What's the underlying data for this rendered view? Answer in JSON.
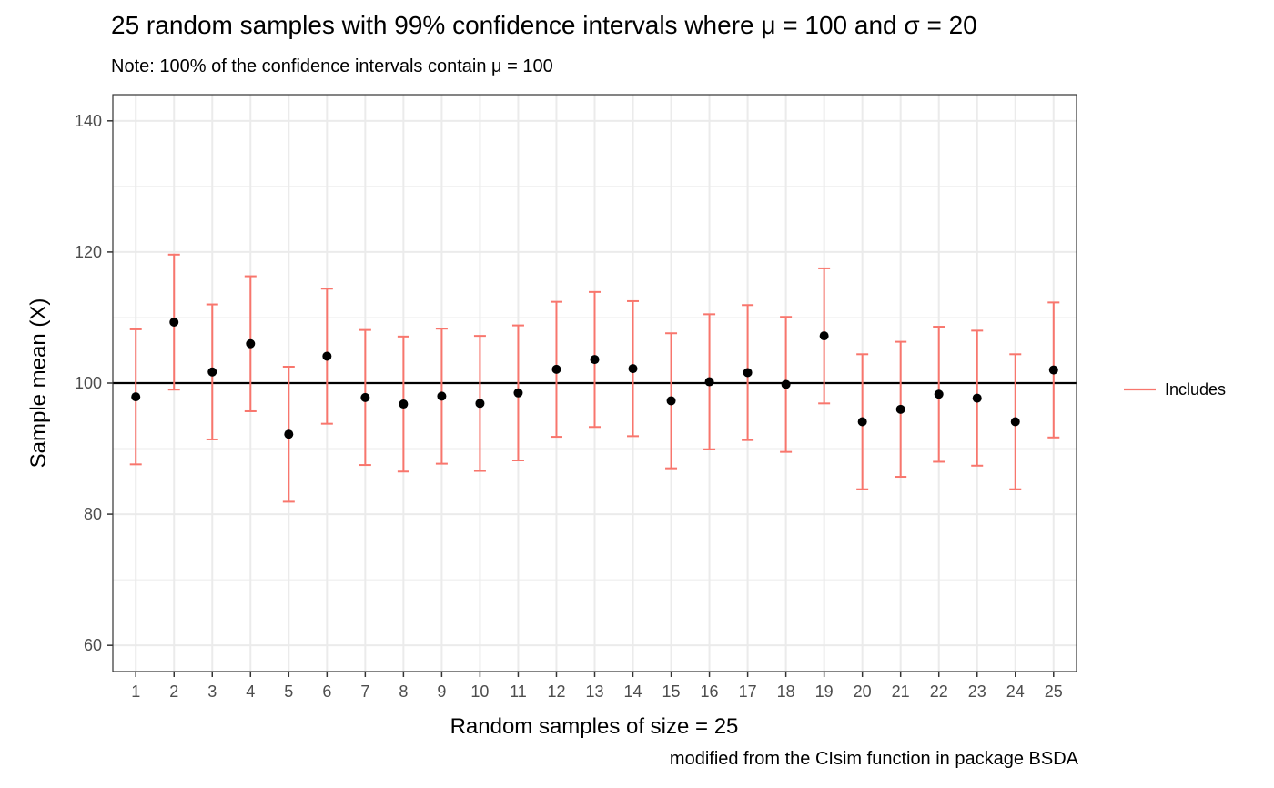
{
  "chart_data": {
    "type": "scatter",
    "title": "25 random samples with 99% confidence intervals where μ = 100 and σ = 20",
    "subtitle": "Note: 100% of the confidence intervals contain μ = 100",
    "caption": "modified from the CIsim function in package BSDA",
    "xlabel": "Random samples of size = 25",
    "ylabel": "Sample mean (X)",
    "ylabel_overline_symbol": "X",
    "x": [
      1,
      2,
      3,
      4,
      5,
      6,
      7,
      8,
      9,
      10,
      11,
      12,
      13,
      14,
      15,
      16,
      17,
      18,
      19,
      20,
      21,
      22,
      23,
      24,
      25
    ],
    "x_tick_labels": [
      "1",
      "2",
      "3",
      "4",
      "5",
      "6",
      "7",
      "8",
      "9",
      "10",
      "11",
      "12",
      "13",
      "14",
      "15",
      "16",
      "17",
      "18",
      "19",
      "20",
      "21",
      "22",
      "23",
      "24",
      "25"
    ],
    "y_ticks": [
      60,
      80,
      100,
      120,
      140
    ],
    "y_tick_labels": [
      "60",
      "80",
      "100",
      "120",
      "140"
    ],
    "ylim": [
      56,
      144
    ],
    "xlim": [
      0.4,
      25.6
    ],
    "reference_line": 100,
    "grid": true,
    "series": [
      {
        "name": "Includes",
        "color": "#F8766D",
        "means": [
          97.9,
          109.3,
          101.7,
          106.0,
          92.2,
          104.1,
          97.8,
          96.8,
          98.0,
          96.9,
          98.5,
          102.1,
          103.6,
          102.2,
          97.3,
          100.2,
          101.6,
          99.8,
          107.2,
          94.1,
          96.0,
          98.3,
          97.7,
          94.1,
          102.0
        ],
        "lower": [
          87.6,
          99.0,
          91.4,
          95.7,
          81.9,
          93.8,
          87.5,
          86.5,
          87.7,
          86.6,
          88.2,
          91.8,
          93.3,
          91.9,
          87.0,
          89.9,
          91.3,
          89.5,
          96.9,
          83.8,
          85.7,
          88.0,
          87.4,
          83.8,
          91.7
        ],
        "upper": [
          108.2,
          119.6,
          112.0,
          116.3,
          102.5,
          114.4,
          108.1,
          107.1,
          108.3,
          107.2,
          108.8,
          112.4,
          113.9,
          112.5,
          107.6,
          110.5,
          111.9,
          110.1,
          117.5,
          104.4,
          106.3,
          108.6,
          108.0,
          104.4,
          112.3
        ]
      }
    ],
    "legend": {
      "position": "right",
      "entries": [
        "Includes"
      ]
    },
    "point_color": "#000000",
    "grid_color": "#EBEBEB",
    "panel_border_color": "#333333"
  }
}
